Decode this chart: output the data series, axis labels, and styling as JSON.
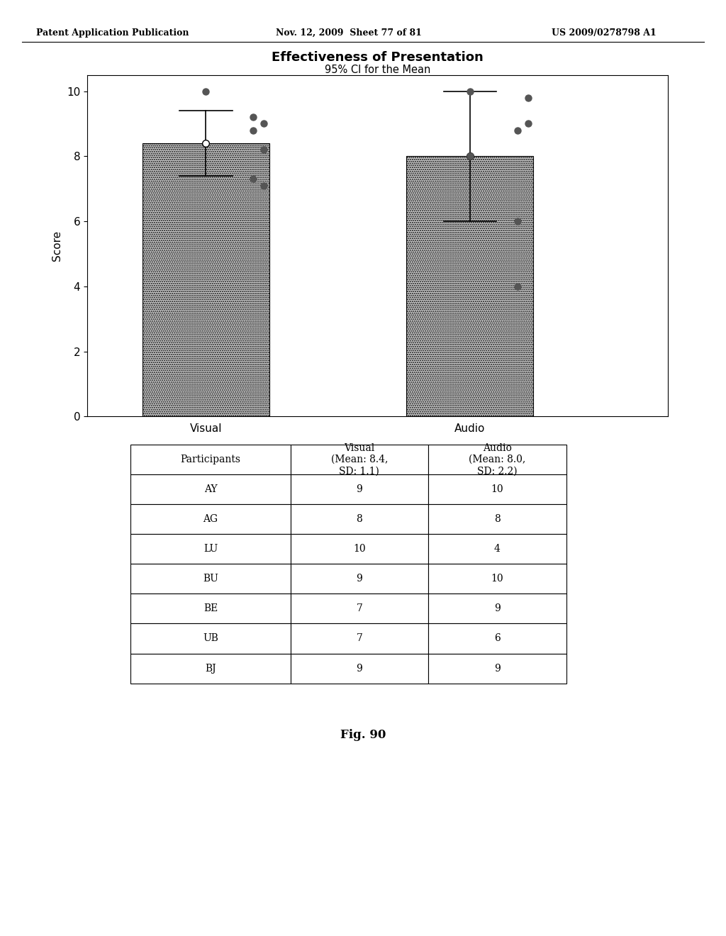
{
  "title": "Effectiveness of Presentation",
  "subtitle": "95% CI for the Mean",
  "xlabel_visual": "Visual",
  "xlabel_audio": "Audio",
  "ylabel": "Score",
  "ylim": [
    0,
    10.5
  ],
  "yticks": [
    0,
    2,
    4,
    6,
    8,
    10
  ],
  "visual_mean": 8.4,
  "audio_mean": 8.0,
  "visual_ci_upper": 9.4,
  "visual_ci_lower": 7.4,
  "audio_ci_upper": 10.0,
  "audio_ci_lower": 6.0,
  "visual_points_x": [
    1.0,
    1.18,
    1.22,
    1.18,
    1.22,
    1.18,
    1.22
  ],
  "visual_points_y": [
    10.0,
    9.2,
    9.0,
    8.8,
    8.2,
    7.3,
    7.1
  ],
  "audio_points_x": [
    2.0,
    2.22,
    2.22,
    2.18,
    2.18,
    2.18,
    2.0
  ],
  "audio_points_y": [
    10.0,
    9.8,
    9.0,
    8.8,
    6.0,
    4.0,
    8.0
  ],
  "participants": [
    "AY",
    "AG",
    "LU",
    "BU",
    "BE",
    "UB",
    "BJ"
  ],
  "visual_values": [
    "9",
    "8",
    "10",
    "9",
    "7",
    "7",
    "9"
  ],
  "audio_values": [
    "10",
    "8",
    "4",
    "10",
    "9",
    "6",
    "9"
  ],
  "header_col1": "Participants",
  "header_col2": "Visual\n(Mean: 8.4,\nSD: 1.1)",
  "header_col3": "Audio\n(Mean: 8.0,\nSD: 2.2)",
  "fig_label": "Fig. 90",
  "bar_color": "#D0D0D0",
  "patent_header": "Patent Application Publication",
  "patent_date": "Nov. 12, 2009  Sheet 77 of 81",
  "patent_num": "US 2009/0278798 A1",
  "background_color": "#FFFFFF"
}
